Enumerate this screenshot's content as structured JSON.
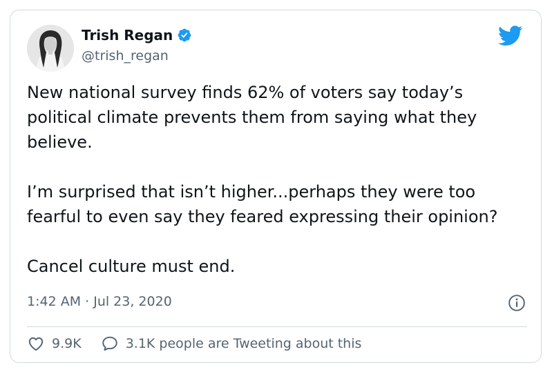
{
  "author": {
    "display_name": "Trish Regan",
    "handle": "@trish_regan",
    "verified": true
  },
  "tweet": {
    "paragraphs": [
      "New national survey finds 62% of voters say today’s political climate prevents them from saying what they believe.",
      "I’m surprised that isn’t higher...perhaps they were too fearful to even say they feared expressing their opinion?",
      "Cancel culture must end."
    ],
    "timestamp": "1:42 AM · Jul 23, 2020"
  },
  "actions": {
    "likes_count": "9.9K",
    "tweeting_text": "3.1K people are Tweeting about this"
  },
  "icons": {
    "verified": "verified-badge-icon",
    "brand": "twitter-bird-icon",
    "info": "info-icon",
    "like": "heart-icon",
    "reply": "speech-bubble-icon"
  },
  "colors": {
    "accent": "#1d9bf0",
    "text": "#0f1419",
    "secondary_text": "#536471",
    "border": "#cfd9de"
  }
}
